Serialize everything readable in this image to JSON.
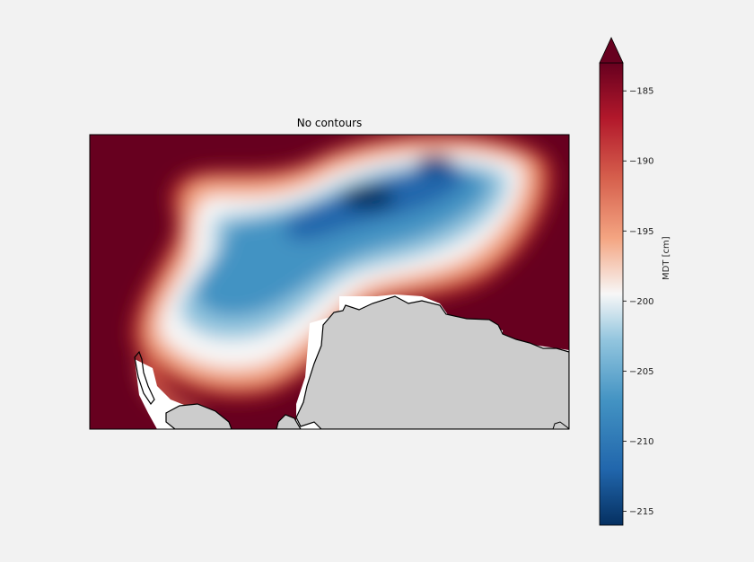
{
  "chart_data": {
    "type": "heatmap",
    "title": "No contours",
    "colorbar": {
      "label": "MDT [cm]",
      "range": [
        -216,
        -183
      ],
      "extend": "max",
      "ticks": [
        -185,
        -190,
        -195,
        -200,
        -205,
        -210,
        -215
      ],
      "tick_labels": [
        "−185",
        "−190",
        "−195",
        "−200",
        "−205",
        "−210",
        "−215"
      ],
      "colormap": "RdBu_r"
    },
    "features": {
      "min_value_region": -215,
      "max_value_region": -184,
      "land_color": "#cccccc",
      "coastline_color": "#000000"
    }
  }
}
